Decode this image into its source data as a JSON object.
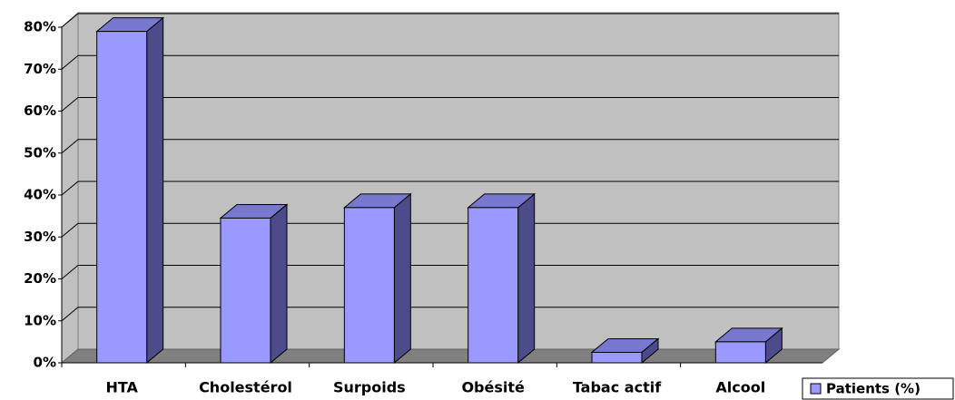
{
  "chart_data": {
    "type": "bar",
    "categories": [
      "HTA",
      "Cholestérol",
      "Surpoids",
      "Obésité",
      "Tabac actif",
      "Alcool"
    ],
    "series": [
      {
        "name": "Patients (%)",
        "color": "#9999ff",
        "values": [
          79,
          34.5,
          37,
          37,
          2.5,
          5
        ]
      }
    ],
    "ylim": [
      0,
      80
    ],
    "yticks": [
      {
        "value": 0,
        "label": "0%"
      },
      {
        "value": 10,
        "label": "10%"
      },
      {
        "value": 20,
        "label": "20%"
      },
      {
        "value": 30,
        "label": "30%"
      },
      {
        "value": 40,
        "label": "40%"
      },
      {
        "value": 50,
        "label": "50%"
      },
      {
        "value": 60,
        "label": "60%"
      },
      {
        "value": 70,
        "label": "70%"
      },
      {
        "value": 80,
        "label": "80%"
      }
    ],
    "grid": true,
    "legend": "bottom-right"
  }
}
